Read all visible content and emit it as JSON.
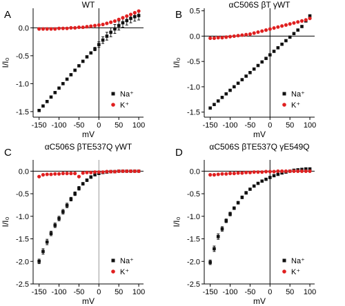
{
  "colors": {
    "na": "#111111",
    "k": "#e02020",
    "axis": "#000000",
    "zero_x_line": "#999999"
  },
  "chart_data": [
    {
      "panel": "A",
      "title": "WT",
      "type": "scatter",
      "xlabel": "mV",
      "ylabel": "I/I₀",
      "xlim": [
        -165,
        112
      ],
      "ylim": [
        -1.6,
        0.35
      ],
      "xticks": [
        -150,
        -100,
        -50,
        0,
        50,
        100
      ],
      "yticks": [
        -1.5,
        -1.0,
        -0.5,
        0.0
      ],
      "ytick_labels": [
        "-1.5",
        "-1.0",
        "-0.5",
        "0.0"
      ],
      "legend": {
        "position": "bottom-right",
        "entries": [
          "Na⁺",
          "K⁺"
        ]
      },
      "series": [
        {
          "name": "Na⁺",
          "color": "#111111",
          "marker": "square",
          "x": [
            -150,
            -140,
            -130,
            -120,
            -110,
            -100,
            -90,
            -80,
            -70,
            -60,
            -50,
            -40,
            -30,
            -20,
            -10,
            0,
            10,
            20,
            30,
            40,
            50,
            60,
            70,
            80,
            90,
            100
          ],
          "y": [
            -1.48,
            -1.4,
            -1.32,
            -1.24,
            -1.16,
            -1.08,
            -1.0,
            -0.92,
            -0.84,
            -0.76,
            -0.68,
            -0.6,
            -0.52,
            -0.45,
            -0.38,
            -0.3,
            -0.22,
            -0.15,
            -0.08,
            -0.02,
            0.04,
            0.09,
            0.13,
            0.17,
            0.2,
            0.22
          ],
          "err": [
            0.02,
            0.02,
            0.02,
            0.02,
            0.02,
            0.02,
            0.02,
            0.02,
            0.02,
            0.02,
            0.02,
            0.02,
            0.02,
            0.02,
            0.03,
            0.05,
            0.06,
            0.07,
            0.08,
            0.08,
            0.08,
            0.08,
            0.08,
            0.08,
            0.08,
            0.08
          ]
        },
        {
          "name": "K⁺",
          "color": "#e02020",
          "marker": "circle",
          "x": [
            -150,
            -140,
            -130,
            -120,
            -110,
            -100,
            -90,
            -80,
            -70,
            -60,
            -50,
            -40,
            -30,
            -20,
            -10,
            0,
            10,
            20,
            30,
            40,
            50,
            60,
            70,
            80,
            90,
            100
          ],
          "y": [
            -0.02,
            -0.02,
            -0.02,
            -0.02,
            -0.02,
            -0.01,
            -0.01,
            -0.01,
            0.0,
            0.0,
            0.01,
            0.01,
            0.02,
            0.03,
            0.04,
            0.05,
            0.06,
            0.08,
            0.1,
            0.12,
            0.15,
            0.18,
            0.21,
            0.24,
            0.27,
            0.3
          ],
          "err": []
        }
      ]
    },
    {
      "panel": "B",
      "title": "αC506S βT γWT",
      "type": "scatter",
      "xlabel": "mV",
      "ylabel": "I/I₀",
      "xlim": [
        -165,
        112
      ],
      "ylim": [
        -1.6,
        0.55
      ],
      "xticks": [
        -150,
        -100,
        -50,
        0,
        50,
        100
      ],
      "yticks": [
        -1.5,
        -1.0,
        -0.5,
        0.0,
        0.5
      ],
      "ytick_labels": [
        "-1.5",
        "-1.0",
        "-0.5",
        "0.0",
        "0.5"
      ],
      "legend": {
        "position": "bottom-right",
        "entries": [
          "Na⁺",
          "K⁺"
        ]
      },
      "series": [
        {
          "name": "Na⁺",
          "color": "#111111",
          "marker": "square",
          "x": [
            -150,
            -140,
            -130,
            -120,
            -110,
            -100,
            -90,
            -80,
            -70,
            -60,
            -50,
            -40,
            -30,
            -20,
            -10,
            0,
            10,
            20,
            30,
            40,
            50,
            60,
            70,
            80,
            90,
            100
          ],
          "y": [
            -1.42,
            -1.35,
            -1.28,
            -1.21,
            -1.14,
            -1.07,
            -1.0,
            -0.93,
            -0.86,
            -0.79,
            -0.72,
            -0.65,
            -0.58,
            -0.51,
            -0.44,
            -0.37,
            -0.3,
            -0.23,
            -0.16,
            -0.09,
            -0.02,
            0.05,
            0.12,
            0.19,
            0.3,
            0.4
          ],
          "err": []
        },
        {
          "name": "K⁺",
          "color": "#e02020",
          "marker": "circle",
          "x": [
            -150,
            -140,
            -130,
            -120,
            -110,
            -100,
            -90,
            -80,
            -70,
            -60,
            -50,
            -40,
            -30,
            -20,
            -10,
            0,
            10,
            20,
            30,
            40,
            50,
            60,
            70,
            80,
            90,
            100
          ],
          "y": [
            -0.04,
            -0.04,
            -0.03,
            -0.03,
            -0.02,
            -0.01,
            0.0,
            0.01,
            0.02,
            0.03,
            0.04,
            0.06,
            0.08,
            0.1,
            0.12,
            0.14,
            0.16,
            0.18,
            0.2,
            0.22,
            0.24,
            0.26,
            0.28,
            0.3,
            0.32,
            0.35
          ],
          "err": []
        }
      ]
    },
    {
      "panel": "C",
      "title": "αC506S βTE537Q γWT",
      "type": "scatter",
      "xlabel": "mV",
      "ylabel": "I/I₀",
      "xlim": [
        -165,
        112
      ],
      "ylim": [
        -2.5,
        0.25
      ],
      "xticks": [
        -150,
        -100,
        -50,
        0,
        50,
        100
      ],
      "yticks": [
        -2.5,
        -2.0,
        -1.5,
        -1.0,
        -0.5,
        0.0
      ],
      "ytick_labels": [
        "-2.5",
        "-2.0",
        "-1.5",
        "-1.0",
        "-0.5",
        "0.0"
      ],
      "legend": {
        "position": "bottom-right",
        "entries": [
          "Na⁺",
          "K⁺"
        ]
      },
      "series": [
        {
          "name": "Na⁺",
          "color": "#111111",
          "marker": "square",
          "x": [
            -150,
            -140,
            -130,
            -120,
            -110,
            -100,
            -90,
            -80,
            -70,
            -60,
            -50,
            -40,
            -30,
            -20,
            -10,
            0,
            10,
            20,
            30,
            40,
            50,
            60,
            70,
            80,
            90,
            100
          ],
          "y": [
            -2.0,
            -1.78,
            -1.57,
            -1.38,
            -1.2,
            -1.05,
            -0.9,
            -0.76,
            -0.62,
            -0.5,
            -0.38,
            -0.28,
            -0.2,
            -0.13,
            -0.08,
            -0.05,
            -0.03,
            -0.02,
            -0.01,
            -0.01,
            0.0,
            0.0,
            0.0,
            0.0,
            0.0,
            0.0
          ],
          "err": [
            0.05,
            0.06,
            0.06,
            0.05,
            0.05,
            0.05,
            0.05,
            0.05,
            0.04,
            0.04,
            0.04,
            0.03,
            0.03,
            0.03,
            0.02,
            0.02,
            0.02,
            0.02,
            0.02,
            0.02,
            0.02,
            0.02,
            0.02,
            0.02,
            0.02,
            0.02
          ]
        },
        {
          "name": "K⁺",
          "color": "#e02020",
          "marker": "circle",
          "x": [
            -150,
            -140,
            -130,
            -120,
            -110,
            -100,
            -90,
            -80,
            -70,
            -60,
            -50,
            -40,
            -30,
            -20,
            -10,
            0,
            10,
            20,
            30,
            40,
            50,
            60,
            70,
            80,
            90,
            100
          ],
          "y": [
            -0.12,
            -0.08,
            -0.07,
            -0.07,
            -0.06,
            -0.06,
            -0.05,
            -0.05,
            -0.05,
            -0.05,
            -0.12,
            -0.04,
            -0.03,
            -0.03,
            -0.02,
            -0.02,
            -0.02,
            -0.01,
            -0.01,
            -0.01,
            0.0,
            0.0,
            0.0,
            0.0,
            0.0,
            0.0
          ],
          "err": []
        }
      ]
    },
    {
      "panel": "D",
      "title": "αC506S βTE537Q γE549Q",
      "type": "scatter",
      "xlabel": "mV",
      "ylabel": "I/I₀",
      "xlim": [
        -165,
        112
      ],
      "ylim": [
        -2.5,
        0.25
      ],
      "xticks": [
        -150,
        -100,
        -50,
        0,
        50,
        100
      ],
      "yticks": [
        -2.5,
        -2.0,
        -1.5,
        -1.0,
        -0.5,
        0.0
      ],
      "ytick_labels": [
        "-2.5",
        "-2.0",
        "-1.5",
        "-1.0",
        "-0.5",
        "0.0"
      ],
      "legend": {
        "position": "bottom-right",
        "entries": [
          "Na⁺",
          "K⁺"
        ]
      },
      "series": [
        {
          "name": "Na⁺",
          "color": "#111111",
          "marker": "square",
          "x": [
            -150,
            -140,
            -130,
            -120,
            -110,
            -100,
            -90,
            -80,
            -70,
            -60,
            -50,
            -40,
            -30,
            -20,
            -10,
            0,
            10,
            20,
            30,
            40,
            50,
            60,
            70,
            80,
            90,
            100
          ],
          "y": [
            -2.02,
            -1.72,
            -1.45,
            -1.28,
            -1.1,
            -0.95,
            -0.82,
            -0.7,
            -0.58,
            -0.48,
            -0.4,
            -0.33,
            -0.27,
            -0.22,
            -0.18,
            -0.14,
            -0.1,
            -0.07,
            -0.04,
            -0.02,
            0.0,
            0.02,
            0.03,
            0.04,
            0.05,
            0.05
          ],
          "err": [
            0.05,
            0.06,
            0.06,
            0.05,
            0.04,
            0.04,
            0.03,
            0.03,
            0.03,
            0.03,
            0.02,
            0.02,
            0.02,
            0.02,
            0.02,
            0.02,
            0.02,
            0.02,
            0.02,
            0.02,
            0.02,
            0.02,
            0.02,
            0.02,
            0.02,
            0.02
          ]
        },
        {
          "name": "K⁺",
          "color": "#e02020",
          "marker": "circle",
          "x": [
            -150,
            -140,
            -130,
            -120,
            -110,
            -100,
            -90,
            -80,
            -70,
            -60,
            -50,
            -40,
            -30,
            -20,
            -10,
            0,
            10,
            20,
            30,
            40,
            50,
            60,
            70,
            80,
            90,
            100
          ],
          "y": [
            -0.08,
            -0.08,
            -0.07,
            -0.06,
            -0.06,
            -0.05,
            -0.05,
            -0.04,
            -0.04,
            -0.03,
            -0.03,
            -0.02,
            -0.02,
            -0.02,
            -0.01,
            -0.01,
            -0.01,
            0.0,
            0.0,
            0.0,
            0.0,
            0.0,
            0.0,
            0.0,
            0.0,
            0.0
          ],
          "err": []
        }
      ]
    }
  ]
}
